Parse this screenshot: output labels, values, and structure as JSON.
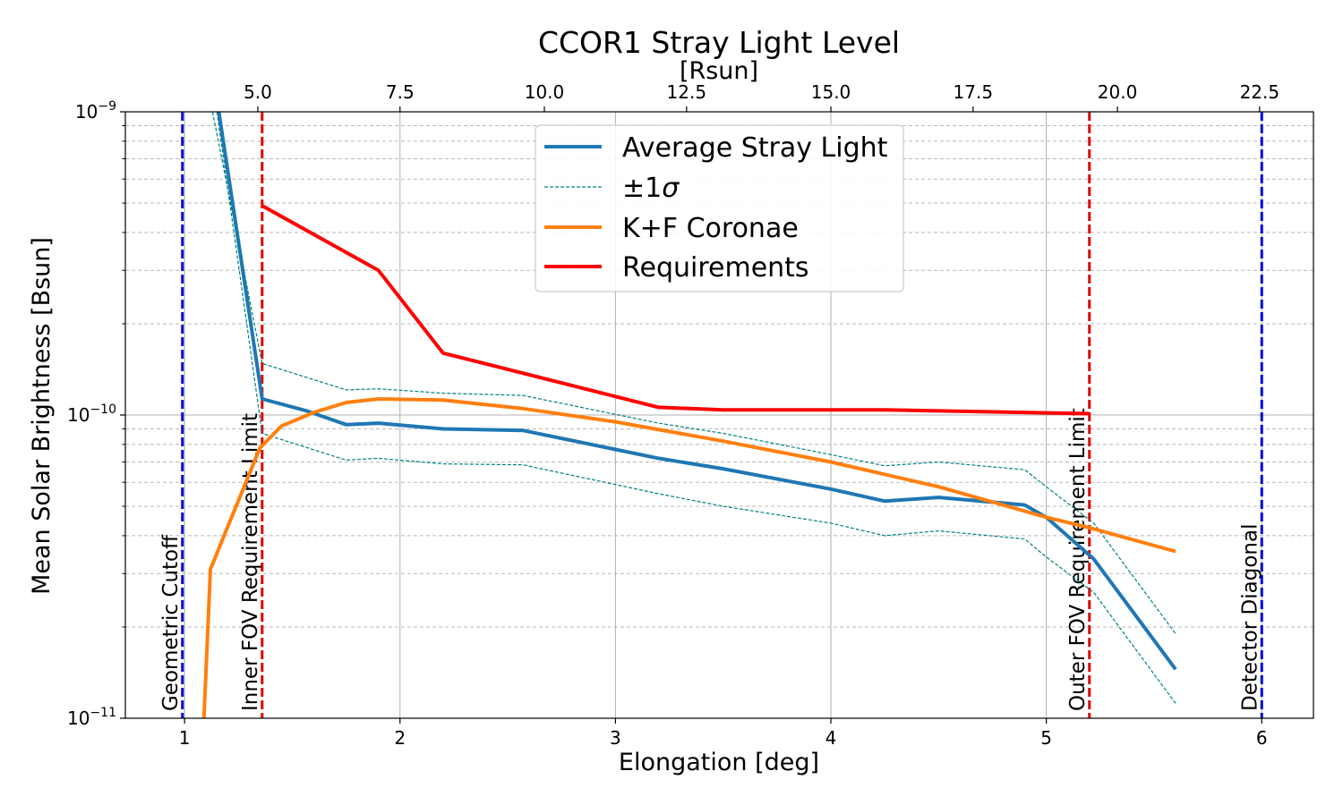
{
  "chart_data": {
    "type": "line",
    "title": "CCOR1 Stray Light Level",
    "xlabel": "Elongation [deg]",
    "ylabel": "Mean Solar Brightness [Bsun]",
    "secondary_xlabel": "[Rsun]",
    "yscale": "log",
    "xlim": [
      0.725,
      6.24
    ],
    "ylim": [
      1e-11,
      1e-09
    ],
    "x_ticks": [
      {
        "value": 1,
        "label": "1"
      },
      {
        "value": 2,
        "label": "2"
      },
      {
        "value": 3,
        "label": "3"
      },
      {
        "value": 4,
        "label": "4"
      },
      {
        "value": 5,
        "label": "5"
      },
      {
        "value": 6,
        "label": "6"
      }
    ],
    "secondary_x_ticks": [
      {
        "value": 1.34,
        "label": "5.0"
      },
      {
        "value": 2.0,
        "label": "7.5"
      },
      {
        "value": 2.67,
        "label": "10.0"
      },
      {
        "value": 3.33,
        "label": "12.5"
      },
      {
        "value": 4.0,
        "label": "15.0"
      },
      {
        "value": 4.66,
        "label": "17.5"
      },
      {
        "value": 5.33,
        "label": "20.0"
      },
      {
        "value": 5.99,
        "label": "22.5"
      }
    ],
    "y_ticks": [
      {
        "value": 1e-11,
        "base": "10",
        "exp": "−11"
      },
      {
        "value": 1e-10,
        "base": "10",
        "exp": "−10"
      },
      {
        "value": 1e-09,
        "base": "10",
        "exp": "−9"
      }
    ],
    "grid": true,
    "legend_position": "top-center",
    "series": [
      {
        "name": "Average Stray Light",
        "legend_label": "Average Stray Light",
        "color": "#1f77b4",
        "style": "solid",
        "x": [
          1.15,
          1.36,
          1.57,
          1.75,
          1.9,
          2.2,
          2.57,
          3.0,
          3.2,
          3.5,
          4.0,
          4.25,
          4.5,
          4.9,
          5.0,
          5.22,
          5.6
        ],
        "y": [
          1.1e-09,
          1.13e-10,
          1.03e-10,
          9.3e-11,
          9.4e-11,
          9e-11,
          8.9e-11,
          7.7e-11,
          7.2e-11,
          6.65e-11,
          5.7e-11,
          5.2e-11,
          5.35e-11,
          5.05e-11,
          4.6e-11,
          3.35e-11,
          1.45e-11
        ]
      },
      {
        "name": "+1 sigma",
        "legend_label": "±1",
        "legend_symbol": "σ",
        "color": "#008080",
        "style": "dashed",
        "x": [
          1.13,
          1.36,
          1.75,
          1.9,
          2.2,
          2.57,
          3.2,
          3.5,
          4.0,
          4.25,
          4.5,
          4.9,
          5.0,
          5.22,
          5.6
        ],
        "y": [
          1e-09,
          1.48e-10,
          1.21e-10,
          1.22e-10,
          1.18e-10,
          1.16e-10,
          9.4e-11,
          8.7e-11,
          7.4e-11,
          6.8e-11,
          7e-11,
          6.6e-11,
          5.8e-11,
          4.4e-11,
          1.9e-11
        ]
      },
      {
        "name": "-1 sigma",
        "legend_label": "",
        "color": "#008080",
        "style": "dashed",
        "x": [
          1.15,
          1.36,
          1.75,
          1.9,
          2.2,
          2.57,
          3.2,
          3.5,
          4.0,
          4.25,
          4.5,
          4.9,
          5.0,
          5.22,
          5.6
        ],
        "y": [
          1e-09,
          8.7e-11,
          7.1e-11,
          7.2e-11,
          6.9e-11,
          6.85e-11,
          5.5e-11,
          5e-11,
          4.4e-11,
          4e-11,
          4.15e-11,
          3.9e-11,
          3.4e-11,
          2.6e-11,
          1.12e-11
        ]
      },
      {
        "name": "K+F Coronae",
        "legend_label": "K+F Coronae",
        "color": "#ff7f0e",
        "style": "solid",
        "x": [
          1.09,
          1.12,
          1.35,
          1.45,
          1.6,
          1.75,
          1.9,
          2.2,
          2.57,
          3.0,
          3.5,
          4.0,
          4.5,
          5.0,
          5.2,
          5.6
        ],
        "y": [
          1e-11,
          3.1e-11,
          7.8e-11,
          9.2e-11,
          1.02e-10,
          1.1e-10,
          1.13e-10,
          1.12e-10,
          1.05e-10,
          9.5e-11,
          8.2e-11,
          7e-11,
          5.8e-11,
          4.6e-11,
          4.25e-11,
          3.55e-11
        ]
      },
      {
        "name": "Requirements",
        "legend_label": "Requirements",
        "color": "#ff0000",
        "style": "solid",
        "x": [
          1.36,
          1.9,
          2.2,
          3.2,
          3.5,
          4.25,
          5.2
        ],
        "y": [
          4.9e-10,
          3e-10,
          1.6e-10,
          1.06e-10,
          1.04e-10,
          1.04e-10,
          1.01e-10
        ]
      }
    ],
    "vertical_lines": [
      {
        "x": 0.99,
        "label": "Geometric Cutoff",
        "color": "#0000dd"
      },
      {
        "x": 1.36,
        "label": "Inner FOV Requirement Limit",
        "color": "#dd0000"
      },
      {
        "x": 5.2,
        "label": "Outer FOV Requirement Limit",
        "color": "#dd0000"
      },
      {
        "x": 6.0,
        "label": "Detector Diagonal",
        "color": "#0000dd"
      }
    ]
  }
}
